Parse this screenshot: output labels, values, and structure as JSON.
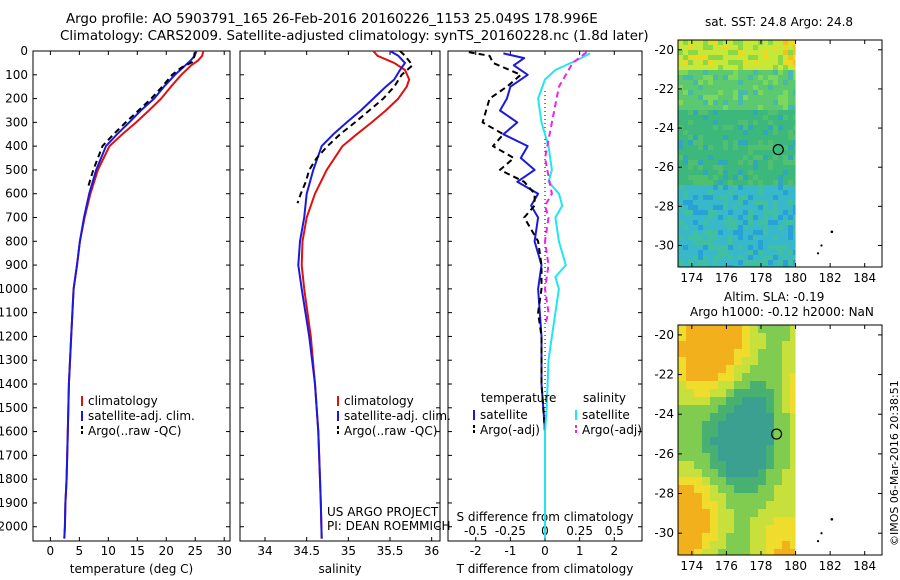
{
  "header": {
    "line1": "Argo profile: AO 5903791_165 26-Feb-2016 20160226_1153 25.049S 178.996E",
    "line2": "Climatology: CARS2009. Satellite-adjusted climatology: synTS_20160228.nc (1.8d later)"
  },
  "footer": {
    "project": "US ARGO PROJECT",
    "pi": "PI: DEAN ROEMMICH",
    "stamp": "©IMOS 06-Mar-2016 20:38:51"
  },
  "colors": {
    "climatology": "#e01010",
    "satellite": "#1a1adf",
    "argo": "#000000",
    "satellite_salinity": "#22e6ee",
    "argo_salinity": "#ee22ee"
  },
  "chart_data": [
    {
      "type": "line",
      "panel": "temperature",
      "xlabel": "temperature (deg C)",
      "xlim": [
        -3,
        31
      ],
      "xticks": [
        0,
        5,
        10,
        15,
        20,
        25,
        30
      ],
      "ylim": [
        2060,
        0
      ],
      "yticks": [
        0,
        100,
        200,
        300,
        400,
        500,
        600,
        700,
        800,
        900,
        1000,
        1100,
        1200,
        1300,
        1400,
        1500,
        1600,
        1700,
        1800,
        1900,
        2000
      ],
      "legend": [
        "climatology",
        "satellite-adj. clim.",
        "Argo(..raw -QC)"
      ],
      "series": [
        {
          "name": "climatology",
          "x": [
            26.4,
            26.2,
            25.5,
            24.3,
            22.6,
            20.8,
            19.1,
            17.0,
            14.8,
            12.4,
            10.2,
            8.2,
            6.9,
            5.9,
            5.1,
            4.6,
            4.0,
            3.6,
            3.2,
            3.0,
            2.8,
            2.6,
            2.5,
            2.4
          ],
          "y": [
            0,
            20,
            40,
            60,
            100,
            150,
            200,
            250,
            300,
            350,
            400,
            500,
            600,
            700,
            800,
            900,
            1000,
            1200,
            1400,
            1600,
            1800,
            1900,
            2000,
            2050
          ]
        },
        {
          "name": "satellite-adj. clim.",
          "x": [
            25.2,
            24.9,
            24.2,
            23.3,
            21.5,
            19.6,
            17.9,
            15.6,
            13.6,
            11.5,
            9.6,
            7.9,
            6.7,
            5.8,
            5.1,
            4.6,
            4.0,
            3.6,
            3.2,
            3.0,
            2.8,
            2.6,
            2.5,
            2.4
          ],
          "y": [
            0,
            20,
            40,
            60,
            100,
            150,
            200,
            250,
            300,
            350,
            400,
            500,
            600,
            700,
            800,
            900,
            1000,
            1200,
            1400,
            1600,
            1800,
            1900,
            2000,
            2050
          ]
        },
        {
          "name": "Argo(..raw -QC)",
          "x": [
            24.9,
            24.8,
            24.6,
            22.6,
            21.0,
            19.3,
            17.4,
            15.2,
            13.0,
            10.9,
            9.0,
            7.4,
            6.4
          ],
          "y": [
            5,
            25,
            45,
            70,
            100,
            150,
            200,
            250,
            300,
            350,
            400,
            500,
            580
          ]
        }
      ]
    },
    {
      "type": "line",
      "panel": "salinity",
      "xlabel": "salinity",
      "xlim": [
        33.7,
        36.1
      ],
      "xticks": [
        34,
        34.5,
        35,
        35.5,
        36
      ],
      "ylim": [
        2060,
        0
      ],
      "legend": [
        "climatology",
        "satellite-adj. clim.",
        "Argo(..raw -QC)"
      ],
      "series": [
        {
          "name": "climatology",
          "x": [
            35.3,
            35.35,
            35.55,
            35.68,
            35.73,
            35.7,
            35.6,
            35.45,
            35.28,
            35.1,
            34.93,
            34.74,
            34.6,
            34.5,
            34.45,
            34.44,
            34.47,
            34.55,
            34.6,
            34.64,
            34.66,
            34.67,
            34.68
          ],
          "y": [
            0,
            20,
            50,
            80,
            120,
            150,
            200,
            250,
            300,
            350,
            400,
            500,
            600,
            700,
            800,
            900,
            1000,
            1200,
            1400,
            1600,
            1800,
            1900,
            2050
          ]
        },
        {
          "name": "satellite-adj. clim.",
          "x": [
            35.5,
            35.6,
            35.68,
            35.62,
            35.55,
            35.45,
            35.3,
            35.15,
            34.98,
            34.82,
            34.68,
            34.58,
            34.5,
            34.47,
            34.42,
            34.4,
            34.44,
            34.53,
            34.6,
            34.64,
            34.66,
            34.67,
            34.68
          ],
          "y": [
            0,
            20,
            50,
            80,
            120,
            150,
            200,
            250,
            300,
            350,
            400,
            500,
            600,
            700,
            800,
            900,
            1000,
            1200,
            1400,
            1600,
            1800,
            1900,
            2050
          ]
        },
        {
          "name": "Argo(..raw -QC)",
          "x": [
            35.62,
            35.68,
            35.77,
            35.64,
            35.55,
            35.42,
            35.25,
            35.08,
            34.9,
            34.75,
            34.62,
            34.53,
            34.49,
            34.43,
            34.39
          ],
          "y": [
            0,
            20,
            60,
            100,
            150,
            200,
            250,
            300,
            350,
            400,
            450,
            500,
            550,
            600,
            640
          ]
        }
      ]
    },
    {
      "type": "line",
      "panel": "difference",
      "xlabel": "T difference from climatology",
      "x2label": "S difference from climatology",
      "xlim": [
        -2.8,
        2.8
      ],
      "xticks": [
        -2,
        -1,
        0,
        1,
        2
      ],
      "x2ticks": [
        -0.5,
        -0.25,
        0,
        0.25,
        0.5
      ],
      "ylim": [
        2060,
        0
      ],
      "legend": [
        "temperature",
        "satellite",
        "Argo(-adj)",
        "salinity",
        "satellite",
        "Argo(-adj)"
      ],
      "series": [
        {
          "name": "satellite",
          "quantity": "temperature",
          "x": [
            -1.2,
            -0.6,
            -0.9,
            -0.5,
            -1.0,
            -1.1,
            -1.3,
            -0.8,
            -1.2,
            -0.5,
            -0.7,
            -0.3,
            -0.8,
            -0.2,
            -0.4,
            -0.2,
            -0.3,
            -0.1,
            -0.2,
            -0.1,
            -0.1,
            0,
            0
          ],
          "y": [
            10,
            30,
            60,
            100,
            150,
            200,
            250,
            300,
            350,
            400,
            450,
            500,
            550,
            600,
            650,
            700,
            800,
            900,
            1000,
            1200,
            1400,
            1600,
            2050
          ]
        },
        {
          "name": "Argo(-adj)",
          "quantity": "temperature",
          "x": [
            -2.2,
            -1.6,
            -1.5,
            -0.7,
            -1.1,
            -1.6,
            -1.8,
            -1.2,
            -1.5,
            -0.9,
            -1.3,
            -0.6,
            -0.3,
            -0.3,
            -0.6,
            -0.2,
            -0.1,
            -0.1,
            -0.2,
            -0.1,
            -0.1,
            0,
            0
          ],
          "y": [
            5,
            20,
            50,
            100,
            150,
            200,
            300,
            350,
            400,
            450,
            500,
            550,
            600,
            650,
            700,
            800,
            900,
            1000,
            1100,
            1200,
            1400,
            1600,
            2050
          ]
        },
        {
          "name": "satellite",
          "quantity": "salinity",
          "x": [
            1.3,
            0.9,
            0.3,
            0,
            -0.2,
            -0.1,
            0.1,
            0.2,
            0.1,
            0.4,
            0.5,
            0.3,
            0.4,
            0.6,
            0.3,
            0.4,
            0.3,
            0.2,
            0.1,
            0.05,
            0,
            0,
            0
          ],
          "y": [
            10,
            40,
            80,
            120,
            200,
            300,
            400,
            500,
            550,
            600,
            650,
            700,
            800,
            900,
            950,
            1000,
            1100,
            1200,
            1300,
            1500,
            1600,
            1800,
            2050
          ]
        },
        {
          "name": "Argo(-adj)",
          "quantity": "salinity",
          "x": [
            1.2,
            0.8,
            0.4,
            0.2,
            0,
            0.2,
            0,
            0.1,
            0,
            0.1,
            0,
            0.1,
            0
          ],
          "y": [
            5,
            50,
            150,
            300,
            450,
            600,
            650,
            700,
            800,
            900,
            1000,
            1100,
            1150
          ]
        }
      ]
    },
    {
      "type": "heatmap",
      "panel": "sst_map",
      "title": "sat. SST: 24.8 Argo: 24.8",
      "xticks": [
        174,
        176,
        178,
        180,
        182,
        184
      ],
      "yticks": [
        -20,
        -22,
        -24,
        -26,
        -28,
        -30
      ],
      "xlim": [
        173.2,
        185
      ],
      "ylim": [
        -31.1,
        -19.5
      ],
      "float_position": [
        179.0,
        -25.1
      ]
    },
    {
      "type": "heatmap",
      "panel": "sla_map",
      "title": "Altim. SLA: -0.19",
      "subtitle": "Argo h1000: -0.12 h2000: NaN",
      "xticks": [
        174,
        176,
        178,
        180,
        182,
        184
      ],
      "yticks": [
        -20,
        -22,
        -24,
        -26,
        -28,
        -30
      ],
      "xlim": [
        173.2,
        185
      ],
      "ylim": [
        -31.1,
        -19.5
      ],
      "float_position": [
        178.9,
        -25.0
      ]
    }
  ]
}
